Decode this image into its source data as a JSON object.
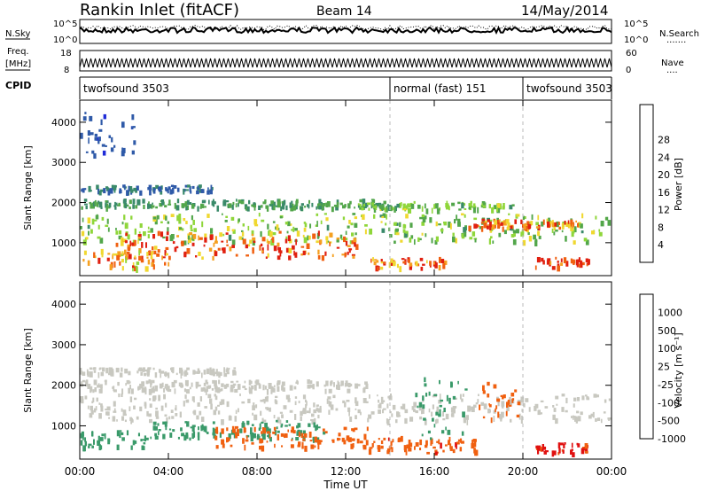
{
  "header": {
    "title": "Rankin Inlet (fitACF)",
    "beam": "Beam 14",
    "date": "14/May/2014"
  },
  "noise_panel": {
    "left_label": "N.Sky",
    "right_label": "N.Search",
    "left_ticks": [
      "10^5",
      "10^0"
    ],
    "right_ticks": [
      "10^5",
      "10^0"
    ],
    "legend_symbol": "·······"
  },
  "freq_panel": {
    "left_label_top": "Freq.",
    "left_label_unit": "[MHz]",
    "right_label": "Nave",
    "left_ticks": [
      "18",
      "8"
    ],
    "right_ticks": [
      "60",
      "0"
    ],
    "legend_symbol": "····"
  },
  "cpid_panel": {
    "label": "CPID",
    "modes": [
      {
        "name": "twofsound 3503",
        "start": 0,
        "end": 14
      },
      {
        "name": "normal (fast) 151",
        "start": 14,
        "end": 20
      },
      {
        "name": "twofsound 3503",
        "start": 20,
        "end": 24
      }
    ]
  },
  "x_axis": {
    "label": "Time UT",
    "ticks": [
      "00:00",
      "04:00",
      "08:00",
      "12:00",
      "16:00",
      "20:00",
      "00:00"
    ]
  },
  "colors": {
    "power": [
      "#1f2bd8",
      "#2f5aa8",
      "#3a8a6a",
      "#52a64a",
      "#8fd63a",
      "#f0d830",
      "#f5a020",
      "#f06010",
      "#e02010"
    ],
    "velocity": [
      "#e01010",
      "#f06010",
      "#f5a020",
      "#c8c8c0",
      "#78c040",
      "#3a9a6a",
      "#2f5aa8",
      "#1f2bd8"
    ]
  },
  "chart_data": [
    {
      "type": "heatmap",
      "name": "power",
      "ylabel": "Slant Range [km]",
      "yticks": [
        1000,
        2000,
        3000,
        4000
      ],
      "ylim": [
        180,
        4550
      ],
      "xlim": [
        0,
        24
      ],
      "colorbar_label": "Power [dB]",
      "colorbar_ticks": [
        "4",
        "8",
        "12",
        "16",
        "20",
        "24",
        "28"
      ],
      "colorbar_range": [
        0,
        30
      ],
      "layers": [
        {
          "t0": 0,
          "t1": 24,
          "r0": 1050,
          "r1": 1750,
          "value": 14
        },
        {
          "t0": 0,
          "t1": 14,
          "r0": 1900,
          "r1": 2100,
          "value": 10
        },
        {
          "t0": 0,
          "t1": 6,
          "r0": 2300,
          "r1": 2450,
          "value": 6
        },
        {
          "t0": 1.5,
          "t1": 12.5,
          "r0": 650,
          "r1": 1300,
          "value": 26
        },
        {
          "t0": 0,
          "t1": 4,
          "r0": 400,
          "r1": 850,
          "value": 22
        },
        {
          "t0": 13,
          "t1": 16.5,
          "r0": 400,
          "r1": 650,
          "value": 26
        },
        {
          "t0": 17.5,
          "t1": 22.5,
          "r0": 1400,
          "r1": 1600,
          "value": 25
        },
        {
          "t0": 20.5,
          "t1": 23,
          "r0": 400,
          "r1": 650,
          "value": 28
        },
        {
          "t0": 12.5,
          "t1": 19.5,
          "r0": 1850,
          "r1": 2050,
          "value": 13
        },
        {
          "t0": 0,
          "t1": 2.5,
          "r0": 3200,
          "r1": 4400,
          "value": 4
        }
      ]
    },
    {
      "type": "heatmap",
      "name": "velocity",
      "ylabel": "Slant Range [km]",
      "yticks": [
        1000,
        2000,
        3000,
        4000
      ],
      "ylim": [
        180,
        4550
      ],
      "xlim": [
        0,
        24
      ],
      "colorbar_label": "Velocity [m s⁻¹]",
      "colorbar_ticks": [
        "1000",
        "500",
        "100",
        "25",
        "-25",
        "-100",
        "-500",
        "-1000"
      ],
      "layers": [
        {
          "t0": 0,
          "t1": 24,
          "r0": 1150,
          "r1": 1800,
          "value": 0
        },
        {
          "t0": 0,
          "t1": 13,
          "r0": 1900,
          "r1": 2150,
          "value": 0
        },
        {
          "t0": 0,
          "t1": 7,
          "r0": 2300,
          "r1": 2450,
          "value": 0
        },
        {
          "t0": 3,
          "t1": 11,
          "r0": 700,
          "r1": 1150,
          "value": 300
        },
        {
          "t0": 6,
          "t1": 13,
          "r0": 500,
          "r1": 1000,
          "value": -300
        },
        {
          "t0": 13,
          "t1": 18,
          "r0": 350,
          "r1": 750,
          "value": -400
        },
        {
          "t0": 20.5,
          "t1": 23,
          "r0": 350,
          "r1": 600,
          "value": -600
        },
        {
          "t0": 15,
          "t1": 17.5,
          "r0": 700,
          "r1": 2200,
          "value": 200
        },
        {
          "t0": 18,
          "t1": 20,
          "r0": 1200,
          "r1": 2100,
          "value": -200
        },
        {
          "t0": 0,
          "t1": 3,
          "r0": 500,
          "r1": 900,
          "value": 150
        }
      ]
    }
  ]
}
